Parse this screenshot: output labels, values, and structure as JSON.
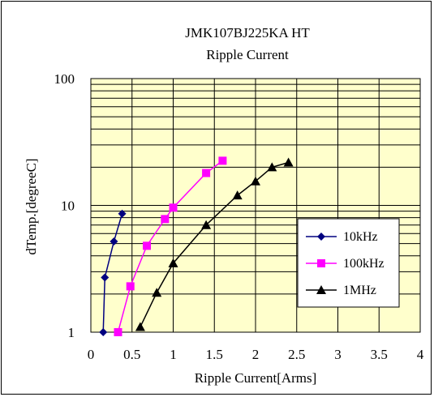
{
  "chart_data": {
    "type": "line",
    "title": "JMK107BJ225KA HT",
    "subtitle": "Ripple Current",
    "xlabel": "Ripple Current[Arms]",
    "ylabel": "dTemp.[degreeC]",
    "xlim": [
      0,
      4
    ],
    "ylim": [
      1,
      100
    ],
    "y_scale": "log",
    "x_ticks": [
      "0",
      "0.5",
      "1",
      "1.5",
      "2",
      "2.5",
      "3",
      "3.5",
      "4"
    ],
    "y_ticks": [
      "1",
      "10",
      "100"
    ],
    "grid": true,
    "plot_background": "#ffffcc",
    "legend_position": "bottom-right",
    "series": [
      {
        "name": "10kHz",
        "color": "#000080",
        "marker": "diamond",
        "points": [
          [
            0.15,
            1.0
          ],
          [
            0.17,
            2.7
          ],
          [
            0.28,
            5.2
          ],
          [
            0.38,
            8.6
          ]
        ]
      },
      {
        "name": "100kHz",
        "color": "#ff00ff",
        "marker": "square",
        "points": [
          [
            0.33,
            1.0
          ],
          [
            0.48,
            2.3
          ],
          [
            0.68,
            4.8
          ],
          [
            0.9,
            7.8
          ],
          [
            1.0,
            9.6
          ],
          [
            1.4,
            18.0
          ],
          [
            1.6,
            22.5
          ]
        ]
      },
      {
        "name": "1MHz",
        "color": "#000000",
        "marker": "triangle",
        "points": [
          [
            0.6,
            1.1
          ],
          [
            0.8,
            2.05
          ],
          [
            1.0,
            3.5
          ],
          [
            1.4,
            7.0
          ],
          [
            1.78,
            12.0
          ],
          [
            2.0,
            15.5
          ],
          [
            2.2,
            20.0
          ],
          [
            2.4,
            21.8
          ]
        ]
      }
    ]
  }
}
